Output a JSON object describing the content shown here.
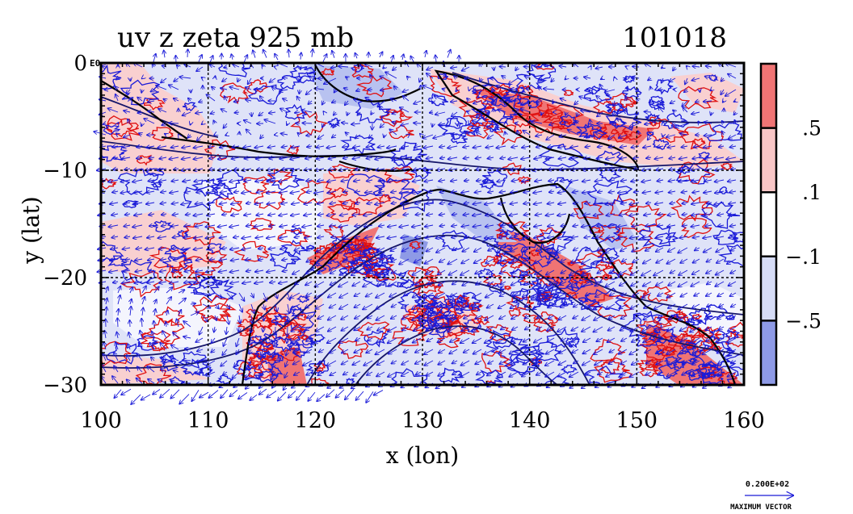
{
  "chart_data": {
    "type": "heatmap",
    "title": "uv z zeta 925 mb",
    "date_label": "101018",
    "xlabel": "x (lon)",
    "ylabel": "y (lat)",
    "xlim": [
      100,
      160
    ],
    "ylim": [
      -30,
      0
    ],
    "x_ticks": [
      {
        "value": 100,
        "label": "100"
      },
      {
        "value": 110,
        "label": "110"
      },
      {
        "value": 120,
        "label": "120"
      },
      {
        "value": 130,
        "label": "130"
      },
      {
        "value": 140,
        "label": "140"
      },
      {
        "value": 150,
        "label": "150"
      },
      {
        "value": 160,
        "label": "160"
      }
    ],
    "y_ticks": [
      {
        "value": 0,
        "label": "0"
      },
      {
        "value": -10,
        "label": "−10"
      },
      {
        "value": -20,
        "label": "−20"
      },
      {
        "value": -30,
        "label": "−30"
      }
    ],
    "y_top_suffix": "E0",
    "grid": true,
    "colorbar": {
      "levels": [
        {
          "color": "#f07474",
          "label": ""
        },
        {
          "color": "#f8c6c6",
          "label": ".5"
        },
        {
          "color": "#ffffff",
          "label": ".1"
        },
        {
          "color": "#d6dcf6",
          "label": "−.1"
        },
        {
          "color": "#8e9ae6",
          "label": "−.5"
        }
      ]
    },
    "colors": {
      "positive_contour": "#e01010",
      "negative_contour": "#1a1ad8",
      "vectors": "#1a1ad8",
      "height_contour": "#16166a",
      "coast": "#000000"
    },
    "reference_vector": {
      "value_label": "0.200E+02",
      "caption": "MAXIMUM VECTOR"
    }
  }
}
